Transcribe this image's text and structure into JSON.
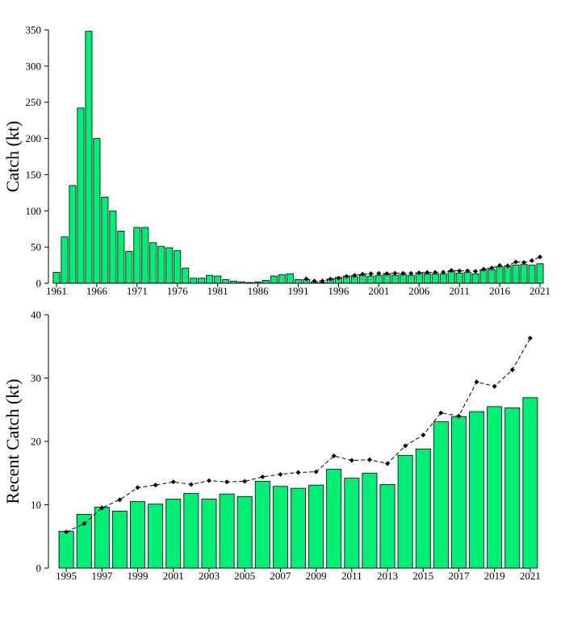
{
  "colors": {
    "bar": "#00ee76",
    "bar_outline": "#000000",
    "line": "#000000",
    "point": "#000000"
  },
  "chart_data": [
    {
      "type": "bar",
      "ylabel": "Catch (kt)",
      "xlabel": "",
      "ylim": [
        0,
        350
      ],
      "yticks": [
        0,
        50,
        100,
        150,
        200,
        250,
        300,
        350
      ],
      "xticks": [
        1961,
        1966,
        1971,
        1976,
        1981,
        1986,
        1991,
        1996,
        2001,
        2006,
        2011,
        2016,
        2021
      ],
      "grid": false,
      "series": [
        {
          "kind": "bar",
          "x": [
            1961,
            1962,
            1963,
            1964,
            1965,
            1966,
            1967,
            1968,
            1969,
            1970,
            1971,
            1972,
            1973,
            1974,
            1975,
            1976,
            1977,
            1978,
            1979,
            1980,
            1981,
            1982,
            1983,
            1984,
            1985,
            1986,
            1987,
            1988,
            1989,
            1990,
            1991,
            1992,
            1993,
            1994,
            1995,
            1996,
            1997,
            1998,
            1999,
            2000,
            2001,
            2002,
            2003,
            2004,
            2005,
            2006,
            2007,
            2008,
            2009,
            2010,
            2011,
            2012,
            2013,
            2014,
            2015,
            2016,
            2017,
            2018,
            2019,
            2020,
            2021
          ],
          "values": [
            15,
            64,
            135,
            242,
            348,
            200,
            119,
            100,
            72,
            44,
            77,
            77,
            56,
            51,
            49,
            45,
            21,
            7,
            7,
            11,
            10,
            5,
            3,
            2,
            1,
            2,
            4,
            10,
            12,
            13,
            5,
            5,
            2,
            1,
            6,
            8,
            10,
            9,
            11,
            10,
            11,
            12,
            11,
            12,
            11,
            14,
            13,
            13,
            13,
            16,
            14,
            15,
            13,
            18,
            19,
            23,
            24,
            25,
            26,
            25,
            27
          ]
        },
        {
          "kind": "line-points",
          "x": [
            1992,
            1993,
            1994,
            1995,
            1996,
            1997,
            1998,
            1999,
            2000,
            2001,
            2002,
            2003,
            2004,
            2005,
            2006,
            2007,
            2008,
            2009,
            2010,
            2011,
            2012,
            2013,
            2014,
            2015,
            2016,
            2017,
            2018,
            2019,
            2020,
            2021
          ],
          "values": [
            6,
            3,
            3,
            5.7,
            7,
            9.5,
            10.8,
            12.7,
            13.1,
            13.6,
            13.2,
            13.8,
            13.6,
            13.7,
            14.4,
            14.8,
            15.1,
            15.2,
            17.7,
            17,
            17.1,
            16.5,
            19.3,
            21,
            24.5,
            24,
            29.4,
            28.7,
            31.3,
            36.3
          ]
        }
      ]
    },
    {
      "type": "bar",
      "ylabel": "Recent Catch (kt)",
      "xlabel": "",
      "ylim": [
        0,
        40
      ],
      "yticks": [
        0,
        10,
        20,
        30,
        40
      ],
      "xticks": [
        1995,
        1997,
        1999,
        2001,
        2003,
        2005,
        2007,
        2009,
        2011,
        2013,
        2015,
        2017,
        2019,
        2021
      ],
      "grid": false,
      "series": [
        {
          "kind": "bar",
          "x": [
            1995,
            1996,
            1997,
            1998,
            1999,
            2000,
            2001,
            2002,
            2003,
            2004,
            2005,
            2006,
            2007,
            2008,
            2009,
            2010,
            2011,
            2012,
            2013,
            2014,
            2015,
            2016,
            2017,
            2018,
            2019,
            2020,
            2021
          ],
          "values": [
            5.8,
            8.5,
            9.6,
            9.0,
            10.5,
            10.1,
            10.9,
            11.8,
            10.9,
            11.7,
            11.3,
            13.7,
            12.9,
            12.6,
            13.1,
            15.6,
            14.2,
            15.0,
            13.2,
            17.8,
            18.8,
            23.1,
            23.9,
            24.7,
            25.5,
            25.3,
            26.9
          ]
        },
        {
          "kind": "line-points",
          "x": [
            1995,
            1996,
            1997,
            1998,
            1999,
            2000,
            2001,
            2002,
            2003,
            2004,
            2005,
            2006,
            2007,
            2008,
            2009,
            2010,
            2011,
            2012,
            2013,
            2014,
            2015,
            2016,
            2017,
            2018,
            2019,
            2020,
            2021
          ],
          "values": [
            5.7,
            7,
            9.5,
            10.8,
            12.7,
            13.1,
            13.6,
            13.2,
            13.8,
            13.6,
            13.7,
            14.4,
            14.8,
            15.1,
            15.2,
            17.7,
            17,
            17.1,
            16.5,
            19.3,
            21,
            24.5,
            24,
            29.4,
            28.7,
            31.3,
            36.3
          ]
        }
      ]
    }
  ]
}
